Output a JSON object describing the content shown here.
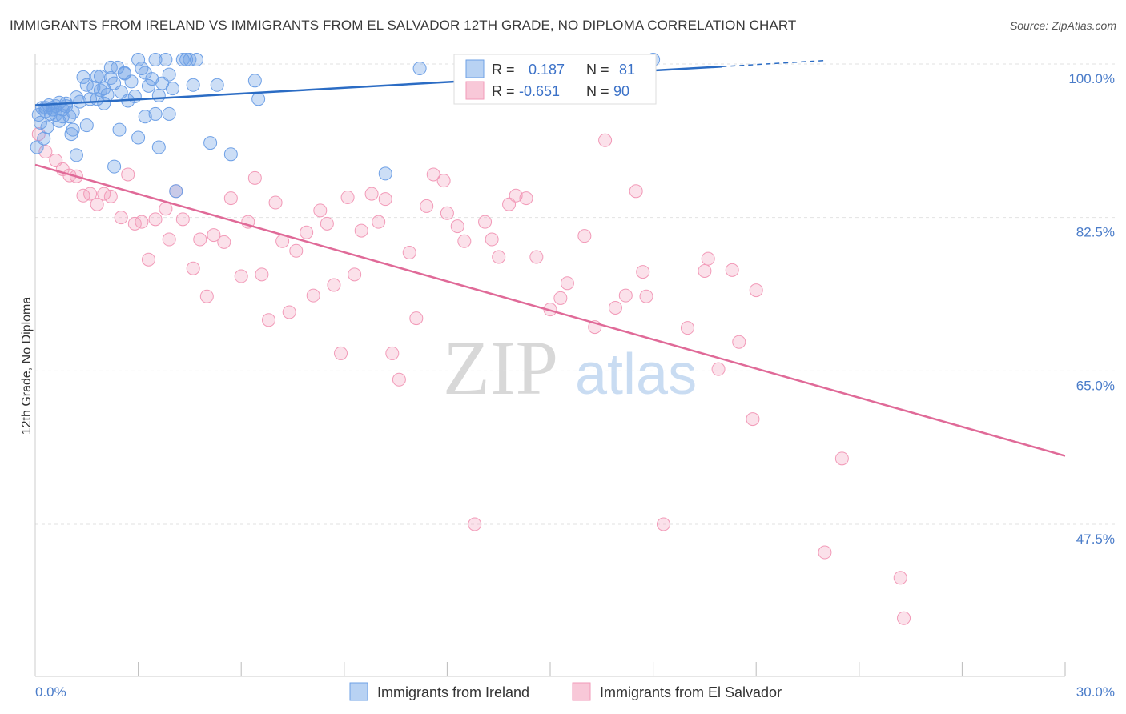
{
  "title": "IMMIGRANTS FROM IRELAND VS IMMIGRANTS FROM EL SALVADOR 12TH GRADE, NO DIPLOMA CORRELATION CHART",
  "source": "Source: ZipAtlas.com",
  "watermark": {
    "zip": "ZIP",
    "atlas": "atlas"
  },
  "colors": {
    "ireland": "#6ea0e6",
    "ireland_line": "#2b6cc4",
    "elsalvador": "#f29ab8",
    "elsalvador_line": "#e06a98",
    "tick_text": "#4a7cc9"
  },
  "chart_data": {
    "type": "scatter",
    "title": "IMMIGRANTS FROM IRELAND VS IMMIGRANTS FROM EL SALVADOR 12TH GRADE, NO DIPLOMA CORRELATION CHART",
    "xlabel": "",
    "ylabel": "12th Grade, No Diploma",
    "xlim": [
      0,
      30
    ],
    "ylim": [
      33,
      101
    ],
    "x_tick_labels": [
      "0.0%",
      "30.0%"
    ],
    "y_ticks": [
      47.5,
      65.0,
      82.5,
      100.0
    ],
    "y_tick_labels": [
      "47.5%",
      "65.0%",
      "82.5%",
      "100.0%"
    ],
    "legend": {
      "stats": [
        {
          "r_label": "R =",
          "r_value": "0.187",
          "n_label": "N =",
          "n_value": "81"
        },
        {
          "r_label": "R =",
          "r_value": "-0.651",
          "n_label": "N =",
          "n_value": "90"
        }
      ]
    },
    "series": [
      {
        "name": "Immigrants from Ireland",
        "trend": {
          "x0": 0,
          "y0": 95.3,
          "x1": 20,
          "y1": 99.7,
          "dash_to_x": 23,
          "dash_to_y": 100.4
        },
        "points": [
          [
            0.1,
            94.2
          ],
          [
            0.2,
            95.0
          ],
          [
            0.3,
            94.6
          ],
          [
            0.4,
            95.3
          ],
          [
            0.5,
            95.0
          ],
          [
            0.6,
            94.2
          ],
          [
            0.7,
            93.5
          ],
          [
            0.8,
            94.8
          ],
          [
            0.9,
            95.2
          ],
          [
            1.0,
            94.0
          ],
          [
            1.1,
            92.5
          ],
          [
            1.2,
            96.2
          ],
          [
            1.3,
            95.7
          ],
          [
            1.4,
            98.5
          ],
          [
            1.5,
            97.6
          ],
          [
            1.6,
            96.0
          ],
          [
            1.7,
            97.3
          ],
          [
            1.8,
            98.6
          ],
          [
            1.9,
            97.0
          ],
          [
            2.0,
            95.5
          ],
          [
            2.1,
            96.5
          ],
          [
            2.2,
            98.4
          ],
          [
            2.3,
            97.8
          ],
          [
            2.4,
            99.6
          ],
          [
            2.5,
            96.8
          ],
          [
            2.6,
            99.0
          ],
          [
            2.7,
            95.8
          ],
          [
            2.8,
            98.0
          ],
          [
            2.9,
            96.3
          ],
          [
            3.0,
            100.5
          ],
          [
            3.1,
            99.5
          ],
          [
            3.2,
            94.0
          ],
          [
            3.3,
            97.5
          ],
          [
            3.4,
            98.3
          ],
          [
            3.5,
            94.3
          ],
          [
            3.6,
            96.4
          ],
          [
            3.7,
            97.8
          ],
          [
            3.8,
            100.5
          ],
          [
            3.9,
            98.8
          ],
          [
            4.0,
            97.2
          ],
          [
            4.3,
            100.5
          ],
          [
            4.5,
            100.5
          ],
          [
            4.6,
            97.6
          ],
          [
            6.4,
            98.1
          ],
          [
            6.5,
            96.0
          ],
          [
            0.15,
            93.3
          ],
          [
            0.25,
            91.5
          ],
          [
            0.35,
            92.8
          ],
          [
            1.05,
            92.0
          ],
          [
            2.45,
            92.5
          ],
          [
            3.0,
            91.6
          ],
          [
            3.6,
            90.5
          ],
          [
            5.1,
            91.0
          ],
          [
            5.7,
            89.7
          ],
          [
            4.1,
            85.5
          ],
          [
            2.3,
            88.3
          ],
          [
            10.2,
            87.5
          ],
          [
            11.2,
            99.5
          ],
          [
            18.0,
            100.5
          ],
          [
            1.2,
            89.6
          ],
          [
            0.5,
            94.8
          ],
          [
            0.7,
            95.6
          ],
          [
            1.1,
            94.5
          ],
          [
            1.5,
            93.0
          ],
          [
            2.0,
            97.2
          ],
          [
            2.6,
            98.9
          ],
          [
            3.2,
            99.0
          ],
          [
            0.9,
            95.5
          ],
          [
            1.8,
            96.0
          ],
          [
            2.2,
            99.6
          ],
          [
            3.5,
            100.5
          ],
          [
            4.7,
            100.5
          ],
          [
            0.3,
            95.0
          ],
          [
            0.6,
            95.2
          ],
          [
            0.45,
            94.3
          ],
          [
            0.8,
            94.0
          ],
          [
            1.9,
            98.6
          ],
          [
            3.9,
            94.3
          ],
          [
            4.4,
            100.5
          ],
          [
            5.3,
            97.6
          ],
          [
            0.05,
            90.5
          ]
        ]
      },
      {
        "name": "Immigrants from El Salvador",
        "trend": {
          "x0": 0,
          "y0": 88.5,
          "x1": 30,
          "y1": 55.3
        },
        "points": [
          [
            0.1,
            92.0
          ],
          [
            0.3,
            90.0
          ],
          [
            0.6,
            89.0
          ],
          [
            0.8,
            88.0
          ],
          [
            1.0,
            87.3
          ],
          [
            1.2,
            87.2
          ],
          [
            1.4,
            85.0
          ],
          [
            1.6,
            85.2
          ],
          [
            1.8,
            84.0
          ],
          [
            2.0,
            85.2
          ],
          [
            2.2,
            84.9
          ],
          [
            2.5,
            82.5
          ],
          [
            2.7,
            87.4
          ],
          [
            2.9,
            81.8
          ],
          [
            3.1,
            82.0
          ],
          [
            3.3,
            77.7
          ],
          [
            3.5,
            82.3
          ],
          [
            3.8,
            83.5
          ],
          [
            3.9,
            80.0
          ],
          [
            4.1,
            85.5
          ],
          [
            4.3,
            82.3
          ],
          [
            4.6,
            76.7
          ],
          [
            4.8,
            80.0
          ],
          [
            5.0,
            73.5
          ],
          [
            5.2,
            80.5
          ],
          [
            5.5,
            79.7
          ],
          [
            5.7,
            84.7
          ],
          [
            6.0,
            75.8
          ],
          [
            6.2,
            82.0
          ],
          [
            6.4,
            87.0
          ],
          [
            6.6,
            76.0
          ],
          [
            6.8,
            70.8
          ],
          [
            7.0,
            84.2
          ],
          [
            7.2,
            79.8
          ],
          [
            7.4,
            71.7
          ],
          [
            7.6,
            78.7
          ],
          [
            7.9,
            80.8
          ],
          [
            8.1,
            73.6
          ],
          [
            8.3,
            83.3
          ],
          [
            8.5,
            81.8
          ],
          [
            8.7,
            74.8
          ],
          [
            8.9,
            67.0
          ],
          [
            9.1,
            84.8
          ],
          [
            9.3,
            76.0
          ],
          [
            9.5,
            81.0
          ],
          [
            9.8,
            85.2
          ],
          [
            10.0,
            82.0
          ],
          [
            10.2,
            84.6
          ],
          [
            10.4,
            67.0
          ],
          [
            10.6,
            64.0
          ],
          [
            10.9,
            78.5
          ],
          [
            11.1,
            71.0
          ],
          [
            11.4,
            83.8
          ],
          [
            11.6,
            87.4
          ],
          [
            11.9,
            86.7
          ],
          [
            12.0,
            83.0
          ],
          [
            12.3,
            81.5
          ],
          [
            12.5,
            79.8
          ],
          [
            12.8,
            47.5
          ],
          [
            13.1,
            82.0
          ],
          [
            13.3,
            80.0
          ],
          [
            13.5,
            78.0
          ],
          [
            13.8,
            84.0
          ],
          [
            14.0,
            85.0
          ],
          [
            14.3,
            84.7
          ],
          [
            14.6,
            78.0
          ],
          [
            15.0,
            72.0
          ],
          [
            15.3,
            73.3
          ],
          [
            15.5,
            75.0
          ],
          [
            16.0,
            80.4
          ],
          [
            16.3,
            70.0
          ],
          [
            16.6,
            91.3
          ],
          [
            16.9,
            72.2
          ],
          [
            17.2,
            73.6
          ],
          [
            17.5,
            85.5
          ],
          [
            17.7,
            76.3
          ],
          [
            17.8,
            73.5
          ],
          [
            18.3,
            47.5
          ],
          [
            19.0,
            69.9
          ],
          [
            19.5,
            76.4
          ],
          [
            19.6,
            77.8
          ],
          [
            19.9,
            65.2
          ],
          [
            20.3,
            76.5
          ],
          [
            20.5,
            68.3
          ],
          [
            20.9,
            59.5
          ],
          [
            21.0,
            74.2
          ],
          [
            23.0,
            44.3
          ],
          [
            23.5,
            55.0
          ],
          [
            25.2,
            41.4
          ],
          [
            25.3,
            36.8
          ]
        ]
      }
    ]
  }
}
